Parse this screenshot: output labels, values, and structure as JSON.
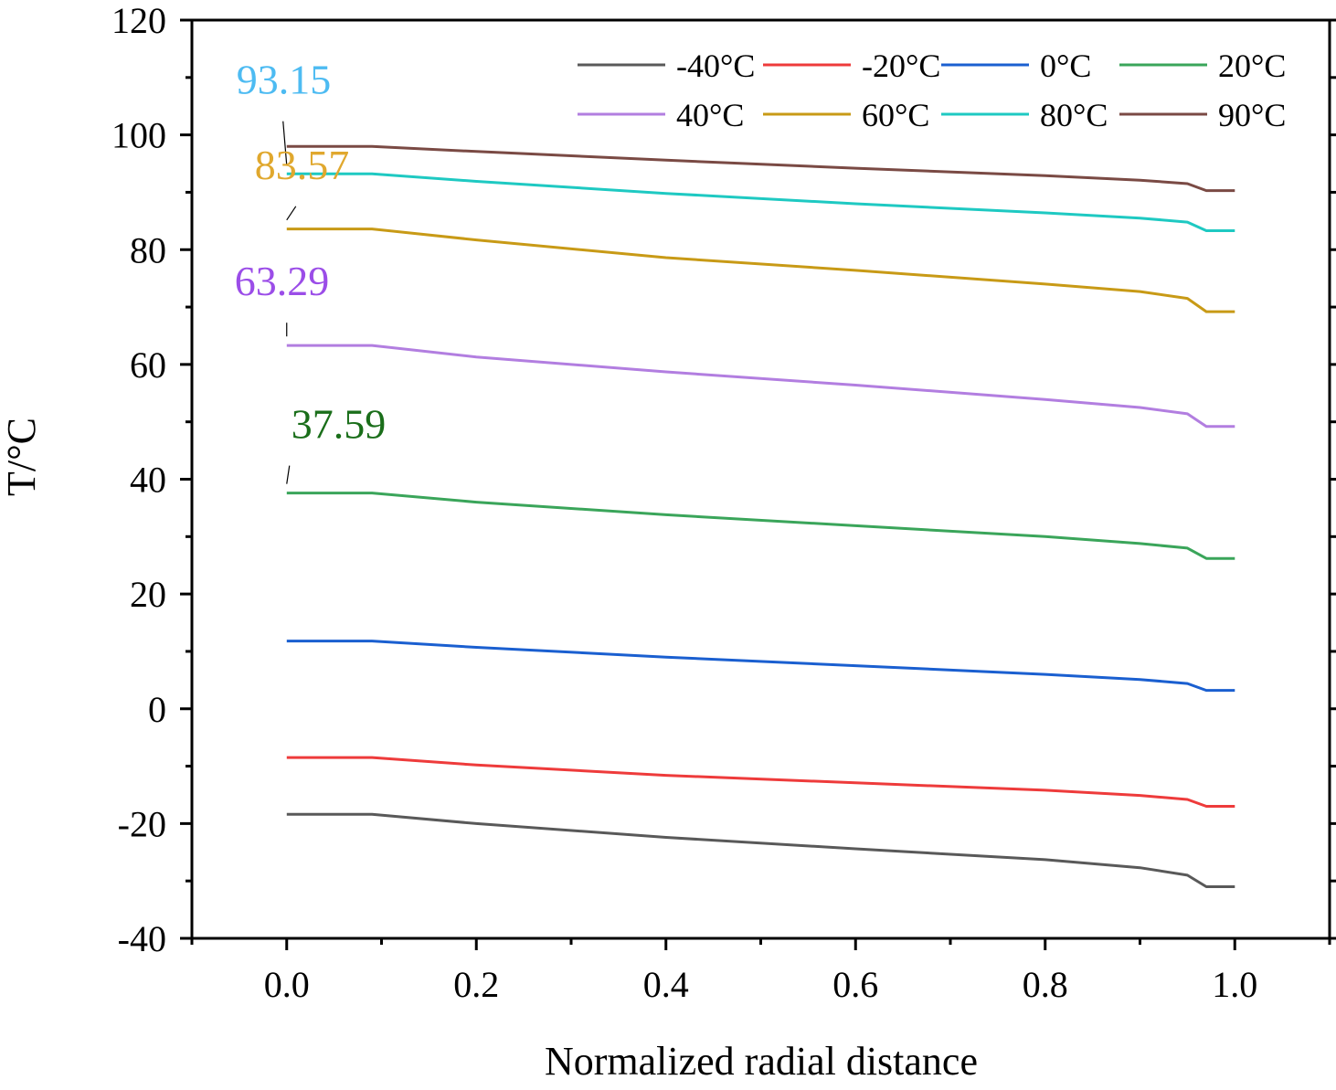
{
  "chart_data": {
    "type": "line",
    "title": "",
    "xlabel": "Normalized radial distance",
    "ylabel": "T/°C",
    "xlim": [
      -0.1,
      1.1
    ],
    "ylim": [
      -40,
      120
    ],
    "xticks": [
      0.0,
      0.2,
      0.4,
      0.6,
      0.8,
      1.0
    ],
    "xtick_labels": [
      "0.0",
      "0.2",
      "0.4",
      "0.6",
      "0.8",
      "1.0"
    ],
    "yticks": [
      -40,
      -20,
      0,
      20,
      40,
      60,
      80,
      100,
      120
    ],
    "ytick_labels": [
      "-40",
      "-20",
      "0",
      "20",
      "40",
      "60",
      "80",
      "100",
      "120"
    ],
    "grid": false,
    "legend_position": "top-right",
    "x": [
      0.0,
      0.09,
      0.2,
      0.4,
      0.6,
      0.8,
      0.9,
      0.95,
      0.97,
      1.0
    ],
    "series": [
      {
        "name": "-40°C",
        "color": "#595959",
        "values": [
          -18.4,
          -18.4,
          -20.0,
          -22.4,
          -24.4,
          -26.3,
          -27.7,
          -29.0,
          -31.0,
          -31.0
        ]
      },
      {
        "name": "-20°C",
        "color": "#ee3b3b",
        "values": [
          -8.5,
          -8.5,
          -9.8,
          -11.6,
          -12.9,
          -14.2,
          -15.1,
          -15.8,
          -17.0,
          -17.0
        ]
      },
      {
        "name": "0°C",
        "color": "#1a5fd0",
        "values": [
          11.8,
          11.8,
          10.7,
          9.0,
          7.5,
          6.0,
          5.1,
          4.4,
          3.2,
          3.2
        ]
      },
      {
        "name": "20°C",
        "color": "#3aa55a",
        "values": [
          37.6,
          37.6,
          36.0,
          33.8,
          31.9,
          30.0,
          28.8,
          28.0,
          26.2,
          26.2
        ]
      },
      {
        "name": "40°C",
        "color": "#b27ee0",
        "values": [
          63.3,
          63.3,
          61.3,
          58.7,
          56.4,
          53.9,
          52.5,
          51.4,
          49.2,
          49.2
        ]
      },
      {
        "name": "60°C",
        "color": "#c89a16",
        "values": [
          83.6,
          83.6,
          81.7,
          78.6,
          76.4,
          74.0,
          72.7,
          71.5,
          69.2,
          69.2
        ]
      },
      {
        "name": "80°C",
        "color": "#1ec9c2",
        "values": [
          93.2,
          93.2,
          91.9,
          89.8,
          88.0,
          86.4,
          85.5,
          84.8,
          83.3,
          83.3
        ]
      },
      {
        "name": "90°C",
        "color": "#7a4a44",
        "values": [
          98.0,
          98.0,
          97.1,
          95.6,
          94.2,
          92.9,
          92.1,
          91.5,
          90.3,
          90.3
        ]
      }
    ],
    "annotations": [
      {
        "text": "93.15",
        "x": 0.0,
        "y": 93.15,
        "color": "#4dbbf2"
      },
      {
        "text": "83.57",
        "x": 0.0,
        "y": 83.57,
        "color": "#e0a82e"
      },
      {
        "text": "63.29",
        "x": 0.0,
        "y": 63.29,
        "color": "#9b4de8"
      },
      {
        "text": "37.59",
        "x": 0.0,
        "y": 37.59,
        "color": "#1a6e1a"
      }
    ]
  }
}
